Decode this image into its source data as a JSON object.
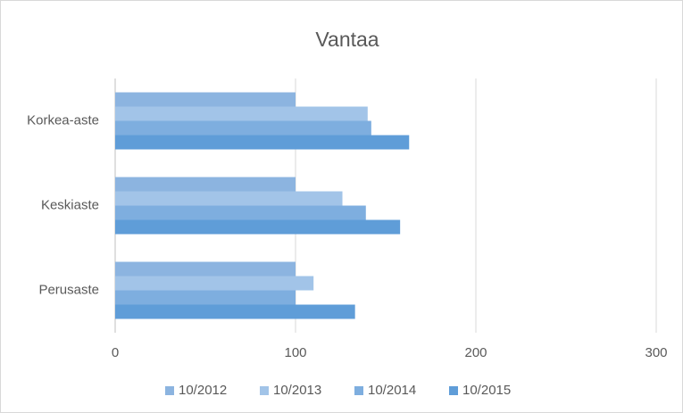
{
  "chart_data": {
    "type": "bar",
    "orientation": "horizontal",
    "title": "Vantaa",
    "categories": [
      "Korkea-aste",
      "Keskiaste",
      "Perusaste"
    ],
    "series": [
      {
        "name": "10/2012",
        "color": "#8cb4e0",
        "values": [
          100,
          100,
          100
        ]
      },
      {
        "name": "10/2013",
        "color": "#a2c4e8",
        "values": [
          140,
          126,
          110
        ]
      },
      {
        "name": "10/2014",
        "color": "#7eaedf",
        "values": [
          142,
          139,
          100
        ]
      },
      {
        "name": "10/2015",
        "color": "#5f9dd8",
        "values": [
          163,
          158,
          133
        ]
      }
    ],
    "xlim": [
      0,
      300
    ],
    "xticks": [
      0,
      100,
      200,
      300
    ],
    "grid": true,
    "legend": "bottom"
  }
}
